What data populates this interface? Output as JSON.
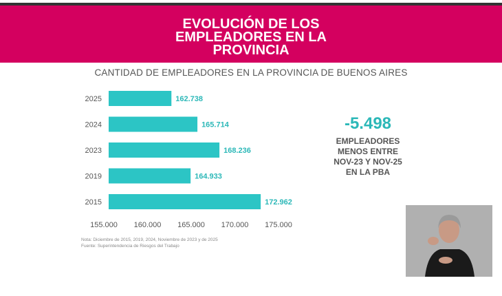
{
  "header": {
    "title_lines": [
      "EVOLUCIÓN DE LOS",
      "EMPLEADORES EN LA",
      "PROVINCIA"
    ],
    "subtitle": "CANTIDAD DE EMPLEADORES EN LA PROVINCIA DE BUENOS AIRES"
  },
  "chart_data": {
    "type": "bar",
    "orientation": "horizontal",
    "title": "CANTIDAD DE EMPLEADORES EN LA PROVINCIA DE BUENOS AIRES",
    "categories": [
      "2025",
      "2024",
      "2023",
      "2019",
      "2015"
    ],
    "values": [
      162738,
      165714,
      168236,
      164933,
      172962
    ],
    "value_labels": [
      "162.738",
      "165.714",
      "168.236",
      "164.933",
      "172.962"
    ],
    "xlim": [
      155000,
      175000
    ],
    "xticks": [
      155000,
      160000,
      165000,
      170000,
      175000
    ],
    "xtick_labels": [
      "155.000",
      "160.000",
      "165.000",
      "170.000",
      "175.000"
    ],
    "bar_color": "#2cc5c5"
  },
  "stat": {
    "value": "-5.498",
    "description": "EMPLEADORES\nMENOS ENTRE\nNOV-23 Y NOV-25\nEN LA PBA"
  },
  "notes": {
    "note": "Nota: Diciembre de 2015, 2019, 2024, Noviembre de 2023 y de 2025",
    "source": "Fuente: Superintendencia de Riesgos del Trabajo"
  },
  "colors": {
    "banner": "#d4005f",
    "accent": "#2cb8b8"
  }
}
